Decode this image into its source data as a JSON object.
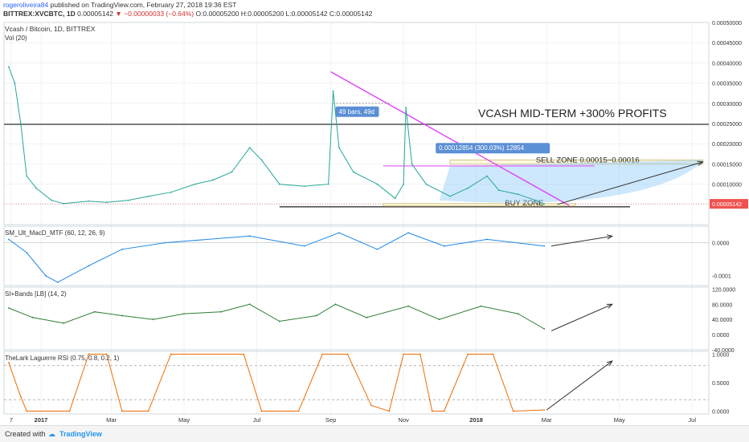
{
  "header": {
    "author": "rogeroliveira84",
    "published": "published on TradingView.com, February 27, 2018 19:36 EST",
    "symbol": "BITTREX:XVCBTC, 1D",
    "last": "0.00005142",
    "change": "▼ −0.00000033 (−0.64%)",
    "ohlc": "O:0.00005200 H:0.00005200 L:0.00005142 C:0.00005142"
  },
  "footer": {
    "created_with": "Created with",
    "brand": "TradingView"
  },
  "colors": {
    "up": "#26a69a",
    "down": "#ef5350",
    "trend": "#e040fb",
    "zone_fill": "#fff8e1",
    "arrow": "#333333",
    "range_label": "#5b8fd6"
  },
  "chart_data": {
    "type": "line",
    "title": "Vcash / Bitcoin, 1D, BITTREX",
    "annotations": {
      "headline": "VCASH MID-TERM +300% PROFITS",
      "sell_zone": "SELL ZONE 0.00015~0.00016",
      "buy_zone": "BUY ZONE",
      "bars_range": "49 bars, 49d",
      "price_range": "0.00012854 (300.03%) 12854"
    },
    "x_ticks": [
      "7",
      "2017",
      "Mar",
      "May",
      "Jul",
      "Sep",
      "Nov",
      "2018",
      "Mar",
      "May",
      "Jul"
    ],
    "price_pane": {
      "indicator_label": "Vol (20)",
      "ylim": [
        0,
        0.0005
      ],
      "y_ticks": [
        "0.00050000",
        "0.00045000",
        "0.00040000",
        "0.00035000",
        "0.00030000",
        "0.00025000",
        "0.00020000",
        "0.00015000",
        "0.00010000",
        "0.00005000"
      ],
      "current_price": "0.00005142",
      "resistance": 0.000248,
      "support": 4.4e-05,
      "sell_zone": [
        0.00015,
        0.00016
      ],
      "buy_zone": [
        4.6e-05,
        5.2e-05
      ],
      "trendline": [
        {
          "date": "2017-09-01",
          "value": 0.000378
        },
        {
          "date": "2018-03-20",
          "value": 4.7e-05
        }
      ],
      "series": [
        {
          "date": "2016-12-05",
          "value": 0.00039
        },
        {
          "date": "2016-12-10",
          "value": 0.00035
        },
        {
          "date": "2016-12-15",
          "value": 0.00025
        },
        {
          "date": "2016-12-20",
          "value": 0.00012
        },
        {
          "date": "2016-12-28",
          "value": 9e-05
        },
        {
          "date": "2017-01-10",
          "value": 6e-05
        },
        {
          "date": "2017-01-20",
          "value": 5.2e-05
        },
        {
          "date": "2017-02-10",
          "value": 5.8e-05
        },
        {
          "date": "2017-02-25",
          "value": 5.5e-05
        },
        {
          "date": "2017-03-15",
          "value": 6e-05
        },
        {
          "date": "2017-04-01",
          "value": 7e-05
        },
        {
          "date": "2017-04-20",
          "value": 8e-05
        },
        {
          "date": "2017-05-10",
          "value": 0.0001
        },
        {
          "date": "2017-05-25",
          "value": 0.00011
        },
        {
          "date": "2017-06-10",
          "value": 0.00013
        },
        {
          "date": "2017-06-25",
          "value": 0.00019
        },
        {
          "date": "2017-07-05",
          "value": 0.00016
        },
        {
          "date": "2017-07-20",
          "value": 0.0001
        },
        {
          "date": "2017-08-10",
          "value": 9.5e-05
        },
        {
          "date": "2017-08-30",
          "value": 0.0001
        },
        {
          "date": "2017-09-03",
          "value": 0.00033
        },
        {
          "date": "2017-09-08",
          "value": 0.00019
        },
        {
          "date": "2017-09-20",
          "value": 0.00013
        },
        {
          "date": "2017-10-10",
          "value": 0.0001
        },
        {
          "date": "2017-10-25",
          "value": 6.5e-05
        },
        {
          "date": "2017-11-01",
          "value": 0.0001
        },
        {
          "date": "2017-11-03",
          "value": 0.00029
        },
        {
          "date": "2017-11-08",
          "value": 0.00015
        },
        {
          "date": "2017-11-20",
          "value": 0.0001
        },
        {
          "date": "2017-12-10",
          "value": 7e-05
        },
        {
          "date": "2017-12-25",
          "value": 9e-05
        },
        {
          "date": "2018-01-10",
          "value": 0.00012
        },
        {
          "date": "2018-01-20",
          "value": 8.5e-05
        },
        {
          "date": "2018-02-05",
          "value": 7.5e-05
        },
        {
          "date": "2018-02-20",
          "value": 6e-05
        },
        {
          "date": "2018-02-27",
          "value": 5.1e-05
        }
      ]
    },
    "macd_pane": {
      "label": "SM_Ult_MacD_MTF (60, 12, 26, 9)",
      "ylim": [
        -0.00013,
        5e-05
      ],
      "y_ticks": [
        "0.0000",
        "-0.0001"
      ],
      "series": [
        {
          "date": "2016-12-05",
          "value": 1e-05
        },
        {
          "date": "2016-12-20",
          "value": -3e-05
        },
        {
          "date": "2017-01-05",
          "value": -0.0001
        },
        {
          "date": "2017-01-15",
          "value": -0.00012
        },
        {
          "date": "2017-02-10",
          "value": -7e-05
        },
        {
          "date": "2017-03-10",
          "value": -2e-05
        },
        {
          "date": "2017-04-15",
          "value": 0.0
        },
        {
          "date": "2017-06-25",
          "value": 2e-05
        },
        {
          "date": "2017-08-10",
          "value": -1e-05
        },
        {
          "date": "2017-09-08",
          "value": 3e-05
        },
        {
          "date": "2017-10-10",
          "value": -2e-05
        },
        {
          "date": "2017-11-05",
          "value": 3e-05
        },
        {
          "date": "2017-12-05",
          "value": -1e-05
        },
        {
          "date": "2018-01-10",
          "value": 1e-05
        },
        {
          "date": "2018-02-27",
          "value": -1e-05
        }
      ]
    },
    "rsi_pane": {
      "label": "SI+Bands [LB] (14, 2)",
      "ylim": [
        -40,
        125
      ],
      "y_ticks": [
        "120.0000",
        "80.0000",
        "40.0000",
        "0.0000",
        "-40.0000"
      ],
      "series": [
        {
          "date": "2016-12-05",
          "value": 70
        },
        {
          "date": "2016-12-25",
          "value": 45
        },
        {
          "date": "2017-01-20",
          "value": 30
        },
        {
          "date": "2017-02-15",
          "value": 60
        },
        {
          "date": "2017-03-10",
          "value": 50
        },
        {
          "date": "2017-04-05",
          "value": 40
        },
        {
          "date": "2017-05-01",
          "value": 55
        },
        {
          "date": "2017-06-01",
          "value": 60
        },
        {
          "date": "2017-06-25",
          "value": 80
        },
        {
          "date": "2017-07-20",
          "value": 35
        },
        {
          "date": "2017-08-20",
          "value": 50
        },
        {
          "date": "2017-09-05",
          "value": 80
        },
        {
          "date": "2017-10-01",
          "value": 45
        },
        {
          "date": "2017-11-05",
          "value": 75
        },
        {
          "date": "2017-12-01",
          "value": 40
        },
        {
          "date": "2018-01-05",
          "value": 75
        },
        {
          "date": "2018-02-05",
          "value": 55
        },
        {
          "date": "2018-02-27",
          "value": 15
        }
      ]
    },
    "laguerre_pane": {
      "label": "TheLark Laguerre RSI (0.75, 0.8, 0.2, 1)",
      "ylim": [
        -0.05,
        1.05
      ],
      "y_ticks": [
        "1.0000",
        "0.5000",
        "0.0000"
      ],
      "series": [
        {
          "date": "2016-12-05",
          "value": 0.85
        },
        {
          "date": "2016-12-15",
          "value": 0.25
        },
        {
          "date": "2016-12-20",
          "value": 0.0
        },
        {
          "date": "2017-01-25",
          "value": 0.0
        },
        {
          "date": "2017-02-10",
          "value": 1.0
        },
        {
          "date": "2017-02-25",
          "value": 1.0
        },
        {
          "date": "2017-03-10",
          "value": 0.0
        },
        {
          "date": "2017-04-01",
          "value": 0.0
        },
        {
          "date": "2017-04-20",
          "value": 1.0
        },
        {
          "date": "2017-06-20",
          "value": 1.0
        },
        {
          "date": "2017-07-05",
          "value": 0.0
        },
        {
          "date": "2017-08-05",
          "value": 0.0
        },
        {
          "date": "2017-08-25",
          "value": 1.0
        },
        {
          "date": "2017-09-15",
          "value": 1.0
        },
        {
          "date": "2017-10-05",
          "value": 0.1
        },
        {
          "date": "2017-10-20",
          "value": 0.0
        },
        {
          "date": "2017-11-01",
          "value": 1.0
        },
        {
          "date": "2017-11-15",
          "value": 1.0
        },
        {
          "date": "2017-11-25",
          "value": 0.0
        },
        {
          "date": "2017-12-05",
          "value": 0.0
        },
        {
          "date": "2017-12-25",
          "value": 1.0
        },
        {
          "date": "2018-01-15",
          "value": 1.0
        },
        {
          "date": "2018-02-01",
          "value": 0.0
        },
        {
          "date": "2018-02-27",
          "value": 0.02
        }
      ]
    }
  }
}
